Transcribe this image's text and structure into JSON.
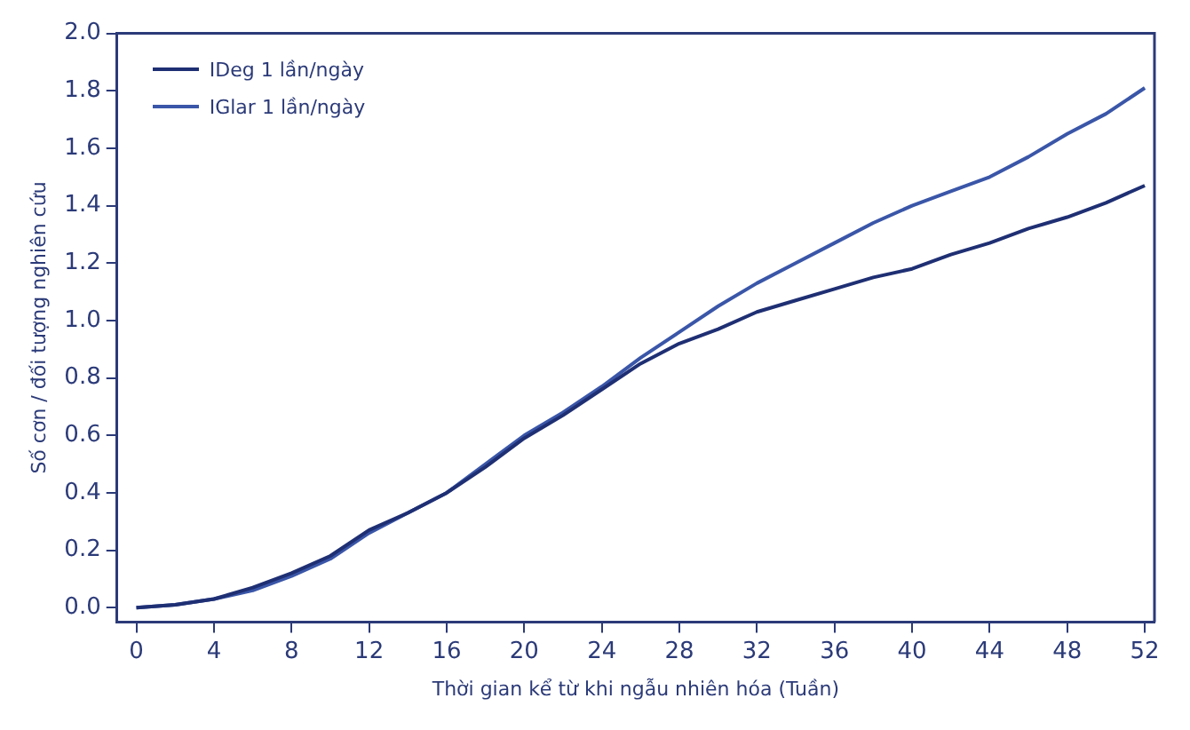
{
  "chart_data": {
    "type": "line",
    "xlabel": "Thời gian kể từ khi ngẫu nhiên hóa (Tuần)",
    "ylabel": "Số cơn / đối tượng nghiên cứu",
    "xlim": [
      -1,
      52.5
    ],
    "xticks": [
      0,
      4,
      8,
      12,
      16,
      20,
      24,
      28,
      32,
      36,
      40,
      44,
      48,
      52
    ],
    "ylim": [
      -0.05,
      2.0
    ],
    "yticks": [
      {
        "value": 0,
        "label": "0.0"
      },
      {
        "value": 0.2,
        "label": "0.2"
      },
      {
        "value": 0.4,
        "label": "0.4"
      },
      {
        "value": 0.6,
        "label": "0.6"
      },
      {
        "value": 0.8,
        "label": "0.8"
      },
      {
        "value": 1,
        "label": "1.0"
      },
      {
        "value": 1.2,
        "label": "1.2"
      },
      {
        "value": 1.4,
        "label": "1.4"
      },
      {
        "value": 1.6,
        "label": "1.6"
      },
      {
        "value": 1.8,
        "label": "1.8"
      },
      {
        "value": 2,
        "label": "2.0"
      }
    ],
    "grid": false,
    "legend": "top left",
    "marker": "none",
    "line_style": "solid",
    "series": [
      {
        "name": "IDeg 1 lần/ngày",
        "color": "#1f2f73",
        "x": [
          0,
          2,
          4,
          6,
          8,
          10,
          12,
          14,
          16,
          18,
          20,
          22,
          24,
          26,
          28,
          30,
          32,
          34,
          36,
          38,
          40,
          42,
          44,
          46,
          48,
          50,
          52
        ],
        "values": [
          0,
          0.01,
          0.03,
          0.07,
          0.12,
          0.18,
          0.27,
          0.33,
          0.4,
          0.49,
          0.59,
          0.67,
          0.76,
          0.85,
          0.92,
          0.97,
          1.03,
          1.07,
          1.11,
          1.15,
          1.18,
          1.23,
          1.27,
          1.32,
          1.36,
          1.41,
          1.47
        ]
      },
      {
        "name": "IGlar 1 lần/ngày",
        "color": "#3a56a8",
        "x": [
          0,
          2,
          4,
          6,
          8,
          10,
          12,
          14,
          16,
          18,
          20,
          22,
          24,
          26,
          28,
          30,
          32,
          34,
          36,
          38,
          40,
          42,
          44,
          46,
          48,
          50,
          52
        ],
        "values": [
          0,
          0.01,
          0.03,
          0.06,
          0.11,
          0.17,
          0.26,
          0.33,
          0.4,
          0.5,
          0.6,
          0.68,
          0.77,
          0.87,
          0.96,
          1.05,
          1.13,
          1.2,
          1.27,
          1.34,
          1.4,
          1.45,
          1.5,
          1.57,
          1.65,
          1.72,
          1.81
        ]
      }
    ]
  }
}
